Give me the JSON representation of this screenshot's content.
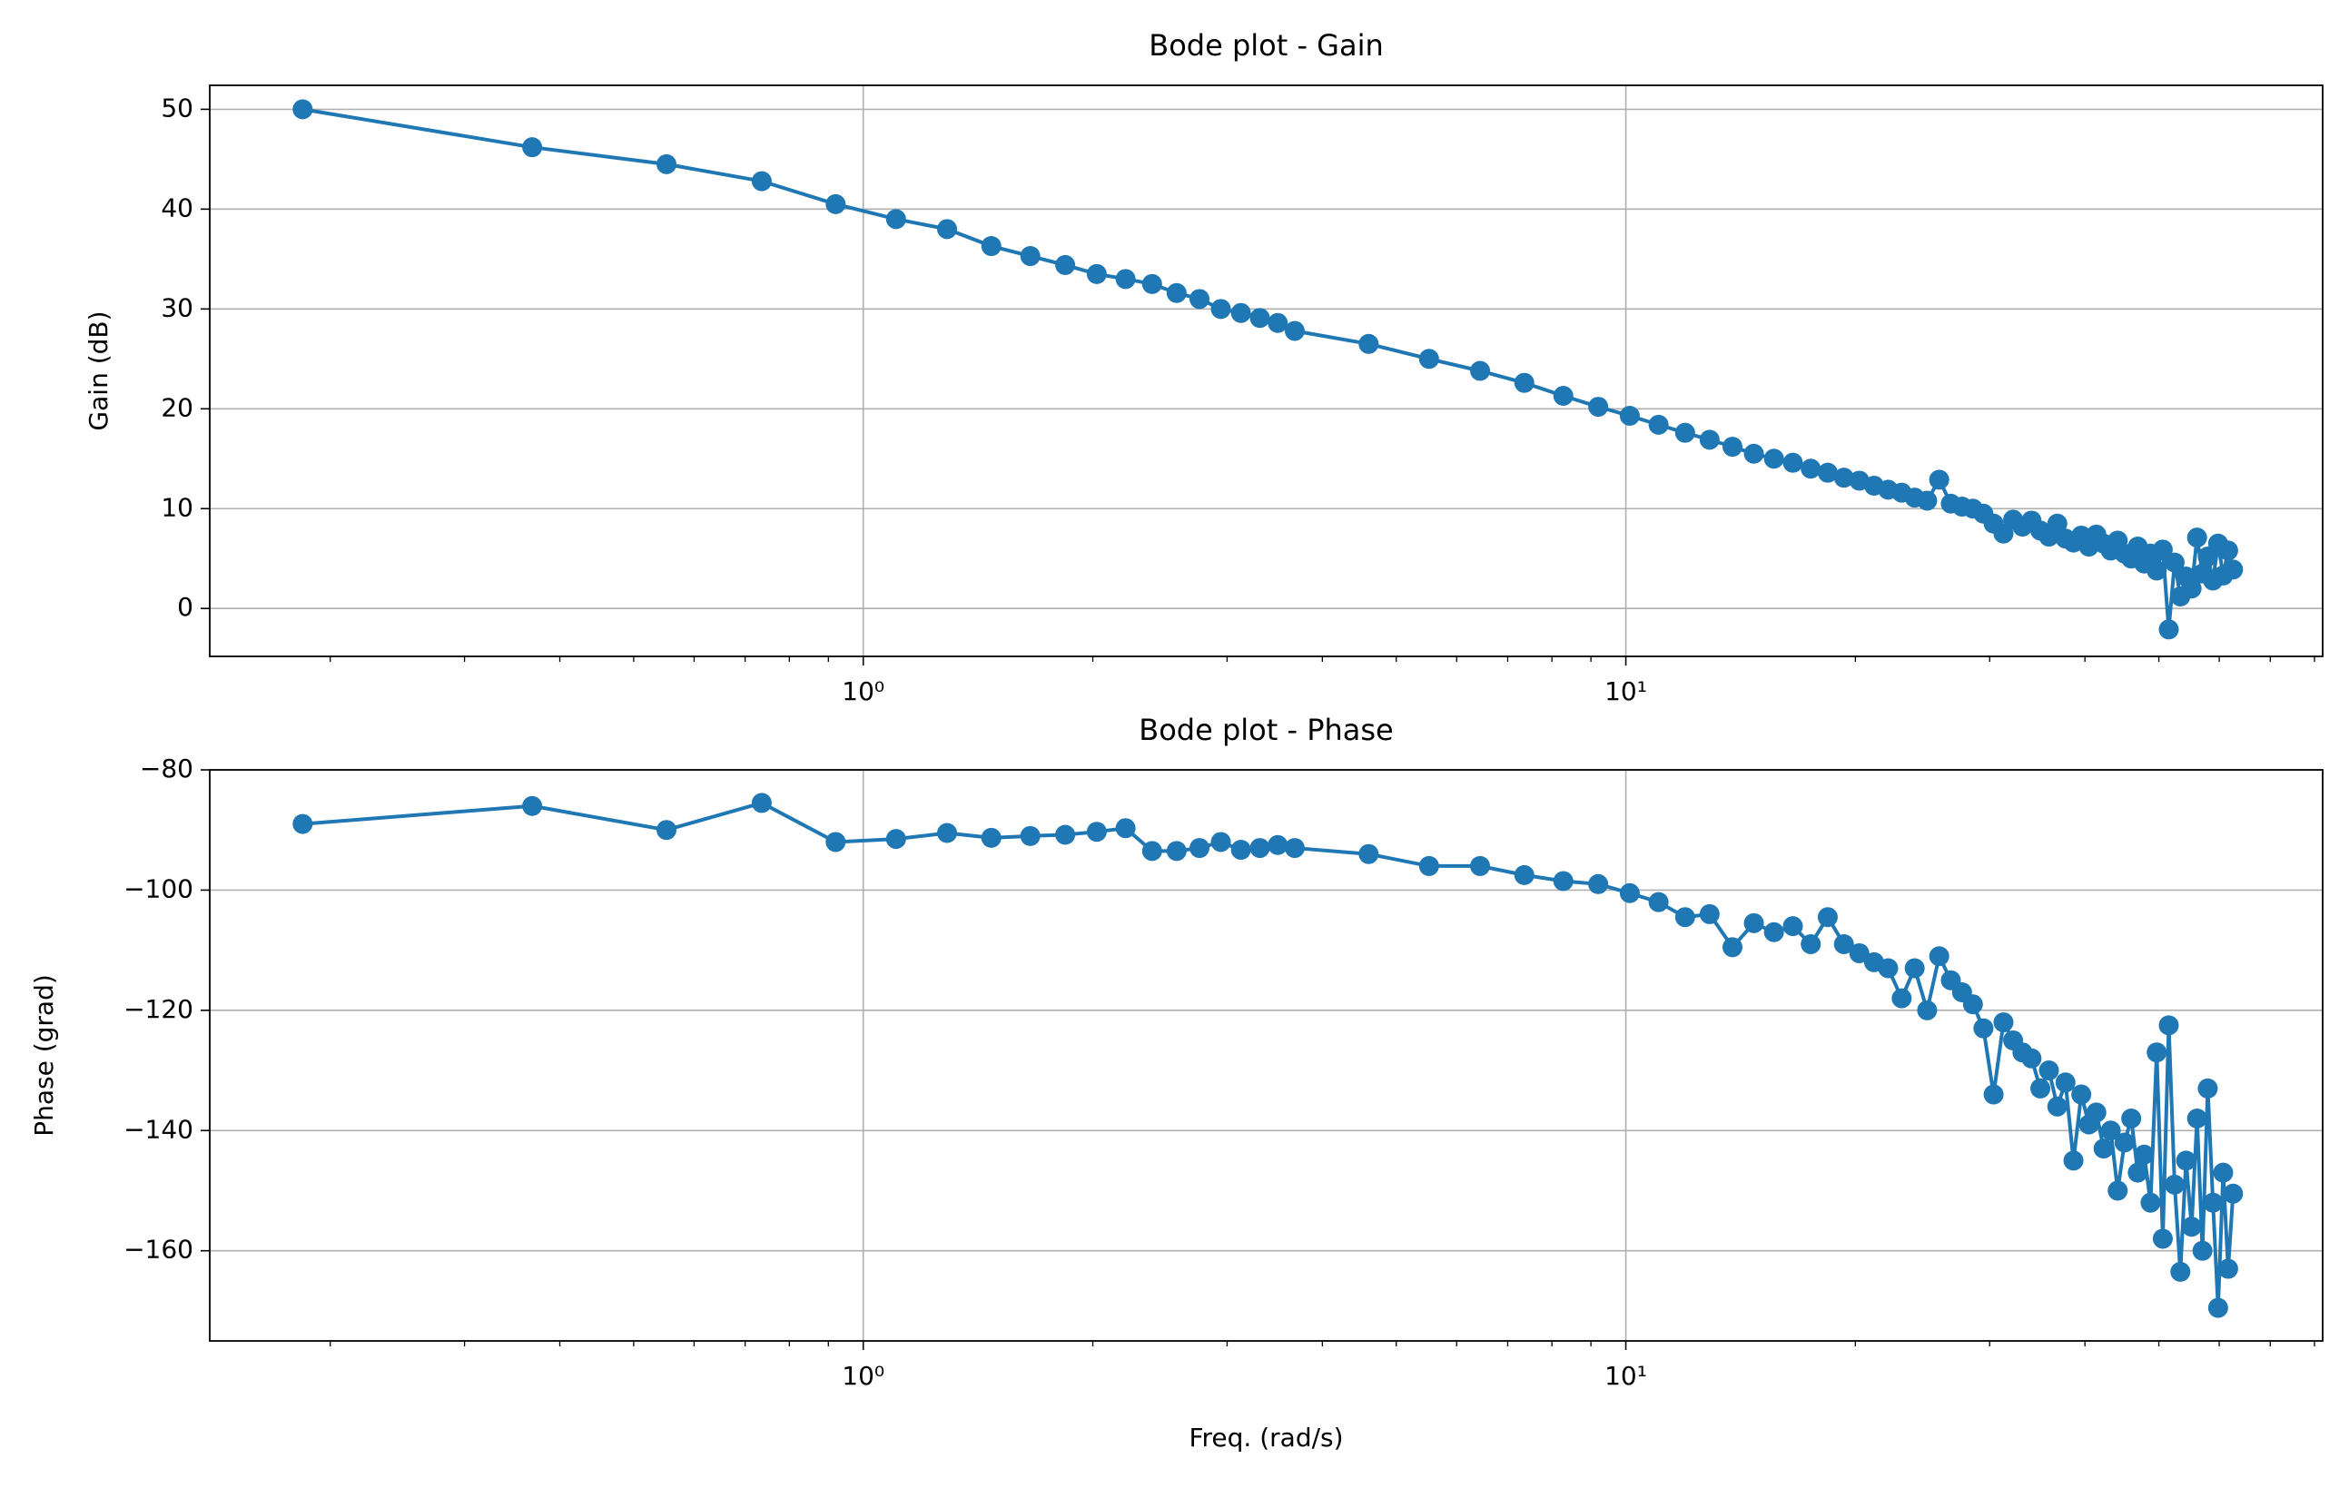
{
  "chart_data": [
    {
      "type": "line",
      "title": "Bode plot - Gain",
      "ylabel": "Gain (dB)",
      "log_x": true,
      "grid": true,
      "color": "#1f77b4",
      "x": [
        0.184,
        0.368,
        0.552,
        0.736,
        0.92,
        1.104,
        1.288,
        1.472,
        1.656,
        1.84,
        2.024,
        2.208,
        2.392,
        2.576,
        2.76,
        2.944,
        3.128,
        3.312,
        3.496,
        3.68,
        4.6,
        5.52,
        6.44,
        7.36,
        8.28,
        9.2,
        10.12,
        11.04,
        11.96,
        12.88,
        13.8,
        14.72,
        15.64,
        16.56,
        17.48,
        18.4,
        19.32,
        20.24,
        21.16,
        22.08,
        23,
        23.92,
        24.84,
        25.76,
        26.68,
        27.6,
        28.52,
        29.44,
        30.36,
        31.28,
        32.2,
        33.12,
        34.04,
        34.96,
        35.88,
        36.8,
        37.72,
        38.64,
        39.56,
        40.48,
        41.4,
        42.32,
        43.24,
        44.16,
        45.08,
        46,
        46.92,
        47.84,
        48.76,
        49.68,
        50.6,
        51.52,
        52.44,
        53.36,
        54.28,
        55.2,
        56.12,
        57.04,
        57.96,
        58.88,
        59.8,
        60.72,
        61.64,
        62.56
      ],
      "values": [
        50,
        46.2,
        44.5,
        42.8,
        40.5,
        39,
        38,
        36.3,
        35.3,
        34.4,
        33.5,
        33,
        32.5,
        31.6,
        31,
        30,
        29.6,
        29.1,
        28.6,
        27.8,
        26.5,
        25,
        23.8,
        22.6,
        21.3,
        20.2,
        19.3,
        18.4,
        17.6,
        16.9,
        16.2,
        15.5,
        15,
        14.6,
        14,
        13.6,
        13.1,
        12.8,
        12.3,
        11.9,
        11.6,
        11.1,
        10.8,
        12.9,
        10.5,
        10.2,
        10,
        9.5,
        8.5,
        7.5,
        8.9,
        8.2,
        8.8,
        7.8,
        7.2,
        8.5,
        7,
        6.6,
        7.3,
        6.2,
        7.4,
        6.5,
        5.8,
        6.8,
        5.5,
        5,
        6.2,
        4.5,
        5.5,
        3.8,
        5.9,
        -2.1,
        4.6,
        1.2,
        3.2,
        2,
        7.1,
        3.5,
        5.2,
        2.8,
        6.5,
        3.3,
        5.8,
        3.9
      ],
      "xlim": [
        0.139,
        82
      ],
      "xticks": [
        {
          "value": 1,
          "label": "10⁰"
        },
        {
          "value": 10,
          "label": "10¹"
        }
      ],
      "xminorticks": [
        0.2,
        0.3,
        0.4,
        0.5,
        0.6,
        0.7,
        0.8,
        0.9,
        2,
        3,
        4,
        5,
        6,
        7,
        8,
        9,
        20,
        30,
        40,
        50,
        60,
        70,
        80
      ],
      "ylim": [
        -4.8,
        52.4
      ],
      "yticks": [
        0,
        10,
        20,
        30,
        40,
        50
      ]
    },
    {
      "type": "line",
      "title": "Bode plot - Phase",
      "ylabel": "Phase (grad)",
      "xlabel": "Freq. (rad/s)",
      "log_x": true,
      "grid": true,
      "color": "#1f77b4",
      "x": [
        0.184,
        0.368,
        0.552,
        0.736,
        0.92,
        1.104,
        1.288,
        1.472,
        1.656,
        1.84,
        2.024,
        2.208,
        2.392,
        2.576,
        2.76,
        2.944,
        3.128,
        3.312,
        3.496,
        3.68,
        4.6,
        5.52,
        6.44,
        7.36,
        8.28,
        9.2,
        10.12,
        11.04,
        11.96,
        12.88,
        13.8,
        14.72,
        15.64,
        16.56,
        17.48,
        18.4,
        19.32,
        20.24,
        21.16,
        22.08,
        23,
        23.92,
        24.84,
        25.76,
        26.68,
        27.6,
        28.52,
        29.44,
        30.36,
        31.28,
        32.2,
        33.12,
        34.04,
        34.96,
        35.88,
        36.8,
        37.72,
        38.64,
        39.56,
        40.48,
        41.4,
        42.32,
        43.24,
        44.16,
        45.08,
        46,
        46.92,
        47.84,
        48.76,
        49.68,
        50.6,
        51.52,
        52.44,
        53.36,
        54.28,
        55.2,
        56.12,
        57.04,
        57.96,
        58.88,
        59.8,
        60.72,
        61.64,
        62.56
      ],
      "values": [
        -89,
        -86,
        -90,
        -85.5,
        -92,
        -91.5,
        -90.5,
        -91.3,
        -91,
        -90.8,
        -90.3,
        -89.7,
        -93.5,
        -93.5,
        -93,
        -92,
        -93.3,
        -93,
        -92.5,
        -93,
        -94,
        -96,
        -96,
        -97.5,
        -98.5,
        -99,
        -100.5,
        -102,
        -104.5,
        -104,
        -109.5,
        -105.5,
        -107,
        -106,
        -109,
        -104.5,
        -109,
        -110.5,
        -112,
        -113,
        -118,
        -113,
        -120,
        -111,
        -115,
        -117,
        -119,
        -123,
        -134,
        -122,
        -125,
        -127,
        -128,
        -133,
        -130,
        -136,
        -132,
        -145,
        -134,
        -139,
        -137,
        -143,
        -140,
        -150,
        -142,
        -138,
        -147,
        -144,
        -152,
        -127,
        -158,
        -122.5,
        -149,
        -163.5,
        -145,
        -156,
        -138,
        -160,
        -133,
        -152,
        -169.5,
        -147,
        -163,
        -150.5
      ],
      "xlim": [
        0.139,
        82
      ],
      "xticks": [
        {
          "value": 1,
          "label": "10⁰"
        },
        {
          "value": 10,
          "label": "10¹"
        }
      ],
      "xminorticks": [
        0.2,
        0.3,
        0.4,
        0.5,
        0.6,
        0.7,
        0.8,
        0.9,
        2,
        3,
        4,
        5,
        6,
        7,
        8,
        9,
        20,
        30,
        40,
        50,
        60,
        70,
        80
      ],
      "ylim": [
        -175,
        -80
      ],
      "yticks": [
        {
          "value": -80,
          "label": "−80"
        },
        {
          "value": -100,
          "label": "−100"
        },
        {
          "value": -120,
          "label": "−120"
        },
        {
          "value": -140,
          "label": "−140"
        },
        {
          "value": -160,
          "label": "−160"
        }
      ]
    }
  ]
}
